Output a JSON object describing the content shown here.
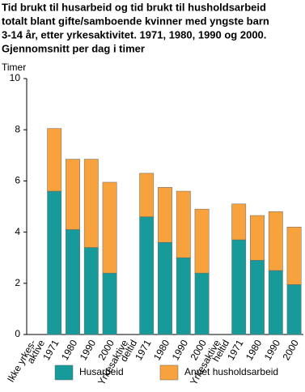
{
  "chart_data": {
    "type": "stacked-bar",
    "title": [
      "Tid brukt til husarbeid og tid brukt til husholdsarbeid",
      "totalt blant gifte/samboende kvinner med yngste barn",
      "3-14 år, etter yrkesaktivitet. 1971, 1980, 1990 og 2000.",
      "Gjennomsnitt per dag i timer"
    ],
    "y_label": "Timer",
    "categories": [
      [
        "Ikke yrkes-",
        "aktive"
      ],
      "1971",
      "1980",
      "1990",
      "2000",
      [
        "Yrkesaktive",
        "deltid"
      ],
      "1971",
      "1980",
      "1990",
      "2000",
      [
        "Yrkesaktive",
        "heltid"
      ],
      "1971",
      "1980",
      "1990",
      "2000"
    ],
    "series": [
      {
        "name": "Husarbeid",
        "color": "#179a9a",
        "values": [
          null,
          5.6,
          4.1,
          3.4,
          2.4,
          null,
          4.6,
          3.6,
          3.0,
          2.4,
          null,
          3.7,
          2.9,
          2.5,
          1.95
        ]
      },
      {
        "name": "Annet husholdsarbeid",
        "color": "#f7a23c",
        "values": [
          null,
          2.45,
          2.75,
          3.45,
          3.55,
          null,
          1.7,
          2.15,
          2.6,
          2.5,
          null,
          1.4,
          1.75,
          2.3,
          2.25
        ]
      }
    ],
    "ylim": [
      0,
      10
    ],
    "yticks": [
      0,
      2,
      4,
      6,
      8,
      10
    ],
    "grid": false
  }
}
